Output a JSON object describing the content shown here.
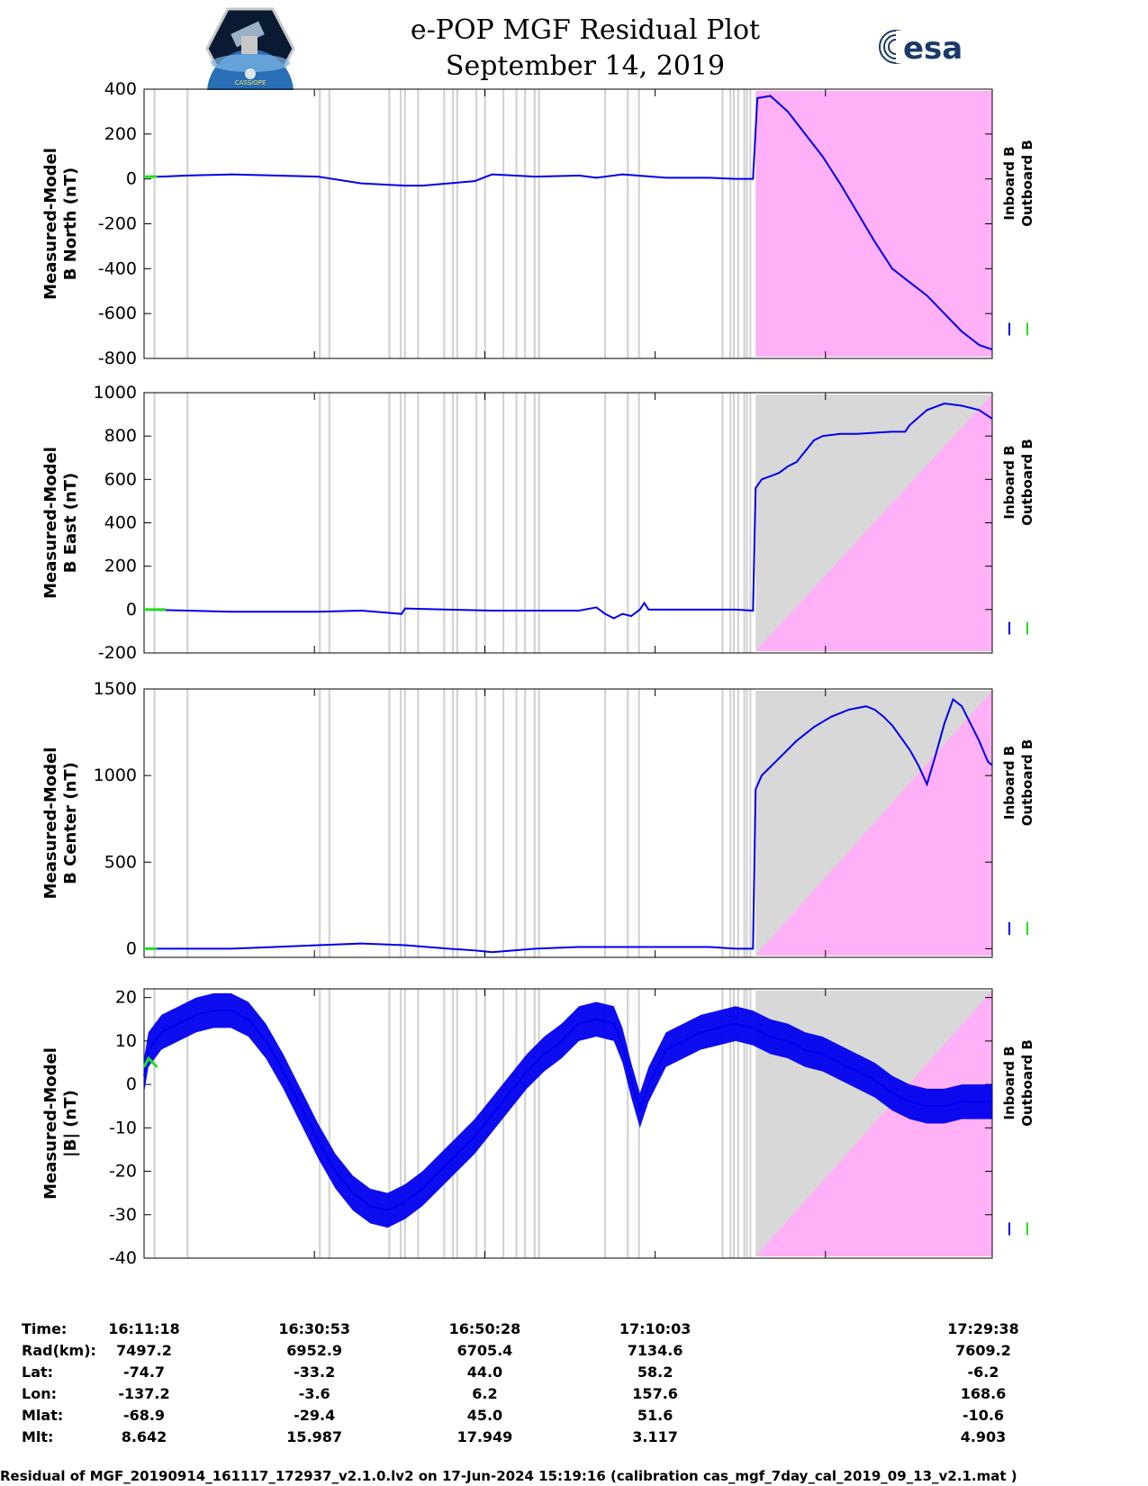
{
  "header": {
    "title": "e-POP MGF Residual Plot",
    "date": "September 14, 2019",
    "logo_left_text": "CASSIOPE",
    "logo_right_text": "esa"
  },
  "colors": {
    "inboard": "#0000ee",
    "outboard": "#22dd22",
    "gap_band": "#d3d3d3",
    "shade_gray": "#d8d8d8",
    "shade_magenta": "#ffb0f6"
  },
  "legend": {
    "inboard": "Inboard B",
    "outboard": "Outboard B"
  },
  "chart_data": [
    {
      "type": "line",
      "ylabel_lines": [
        "Measured-Model",
        "B North (nT)"
      ],
      "ylim": [
        -800,
        400
      ],
      "yticks": [
        "400",
        "200",
        "0",
        "-200",
        "-400",
        "-600",
        "-800"
      ],
      "ytick_values": [
        400,
        200,
        0,
        -200,
        -400,
        -600,
        -800
      ],
      "series": [
        {
          "name": "Inboard B",
          "x": [
            0,
            2,
            5,
            10,
            15,
            20,
            25,
            30,
            32,
            35,
            38,
            40,
            45,
            50,
            52,
            55,
            60,
            62,
            65,
            68,
            70,
            70.5,
            72,
            74,
            76,
            78,
            80,
            82,
            84,
            86,
            88,
            90,
            92,
            94,
            96,
            97.5
          ],
          "y": [
            10,
            10,
            15,
            20,
            15,
            10,
            -20,
            -30,
            -30,
            -20,
            -10,
            20,
            10,
            15,
            5,
            20,
            5,
            5,
            5,
            0,
            0,
            360,
            370,
            300,
            200,
            100,
            -20,
            -150,
            -280,
            -400,
            -460,
            -520,
            -600,
            -680,
            -740,
            -760
          ]
        },
        {
          "name": "Outboard B",
          "x": [
            0,
            1.5
          ],
          "y": [
            10,
            10
          ]
        }
      ],
      "shade": {
        "from": 70.3,
        "to": 97.5,
        "type": "magenta"
      }
    },
    {
      "type": "line",
      "ylabel_lines": [
        "Measured-Model",
        "B East (nT)"
      ],
      "ylim": [
        -200,
        1000
      ],
      "yticks": [
        "1000",
        "800",
        "600",
        "400",
        "200",
        "0",
        "-200"
      ],
      "ytick_values": [
        1000,
        800,
        600,
        400,
        200,
        0,
        -200
      ],
      "series": [
        {
          "name": "Inboard B",
          "x": [
            0,
            5,
            10,
            15,
            20,
            25,
            29.6,
            30,
            35,
            40,
            45,
            50,
            52,
            53,
            54,
            55,
            56,
            57,
            57.5,
            58,
            60,
            65,
            68,
            70,
            70.3,
            71,
            73,
            74,
            75,
            77,
            78,
            80,
            82,
            84,
            86,
            87.5,
            88,
            90,
            92,
            94,
            96,
            97.5
          ],
          "y": [
            0,
            -5,
            -10,
            -10,
            -10,
            -5,
            -20,
            5,
            0,
            -5,
            -5,
            -5,
            10,
            -20,
            -40,
            -20,
            -30,
            0,
            30,
            0,
            0,
            0,
            0,
            -5,
            560,
            600,
            630,
            660,
            680,
            780,
            800,
            810,
            810,
            815,
            820,
            820,
            850,
            920,
            950,
            940,
            920,
            880
          ]
        },
        {
          "name": "Outboard B",
          "x": [
            0,
            2.5
          ],
          "y": [
            0,
            0
          ]
        }
      ],
      "shade": {
        "from": 70.3,
        "to": 97.5,
        "type": "split"
      }
    },
    {
      "type": "line",
      "ylabel_lines": [
        "Measured-Model",
        "B Center (nT)"
      ],
      "ylim": [
        -50,
        1500
      ],
      "yticks": [
        "1500",
        "1000",
        "500",
        "0"
      ],
      "ytick_values": [
        1500,
        1000,
        500,
        0
      ],
      "series": [
        {
          "name": "Inboard B",
          "x": [
            0,
            5,
            10,
            15,
            20,
            25,
            30,
            35,
            38,
            40,
            45,
            50,
            55,
            60,
            65,
            68,
            70,
            70.3,
            71,
            73,
            75,
            77,
            79,
            81,
            83,
            84,
            85,
            86,
            87,
            88,
            89,
            90,
            91,
            92,
            93,
            94,
            95,
            96,
            97,
            97.5
          ],
          "y": [
            0,
            0,
            0,
            10,
            20,
            30,
            20,
            0,
            -10,
            -20,
            0,
            10,
            10,
            10,
            10,
            0,
            0,
            920,
            1000,
            1100,
            1200,
            1280,
            1340,
            1380,
            1400,
            1380,
            1340,
            1290,
            1220,
            1150,
            1060,
            950,
            1120,
            1300,
            1440,
            1400,
            1300,
            1200,
            1080,
            1060
          ]
        },
        {
          "name": "Outboard B",
          "x": [
            0,
            1.5
          ],
          "y": [
            0,
            0
          ]
        }
      ],
      "shade": {
        "from": 70.3,
        "to": 97.5,
        "type": "split"
      }
    },
    {
      "type": "line",
      "ylabel_lines": [
        "Measured-Model",
        "|B| (nT)"
      ],
      "ylim": [
        -40,
        22
      ],
      "yticks": [
        "20",
        "10",
        "0",
        "-10",
        "-20",
        "-30",
        "-40"
      ],
      "ytick_values": [
        20,
        10,
        0,
        -10,
        -20,
        -30,
        -40
      ],
      "series": [
        {
          "name": "Inboard B",
          "x": [
            0,
            0.5,
            2,
            4,
            6,
            8,
            10,
            12,
            14,
            16,
            18,
            20,
            22,
            24,
            26,
            28,
            30,
            32,
            34,
            36,
            38,
            40,
            42,
            44,
            46,
            48,
            50,
            52,
            54,
            55,
            56,
            57,
            58,
            60,
            62,
            64,
            66,
            68,
            70,
            72,
            74,
            76,
            78,
            80,
            82,
            84,
            86,
            88,
            90,
            92,
            94,
            96,
            97.5
          ],
          "y": [
            2,
            8,
            12,
            14,
            16,
            17,
            17,
            15,
            10,
            3,
            -5,
            -13,
            -20,
            -25,
            -28,
            -29,
            -27,
            -24,
            -20,
            -16,
            -12,
            -7,
            -2,
            3,
            7,
            10,
            14,
            15,
            14,
            9,
            1,
            -6,
            0,
            8,
            10,
            12,
            13,
            14,
            13,
            11,
            10,
            8,
            7,
            5,
            3,
            1,
            -2,
            -4,
            -5,
            -5,
            -4,
            -4,
            -4
          ],
          "band_halfwidth": 4
        },
        {
          "name": "Outboard B",
          "x": [
            0,
            0.5,
            1,
            1.5
          ],
          "y": [
            4,
            6,
            5,
            4
          ]
        }
      ],
      "shade": {
        "from": 70.3,
        "to": 97.5,
        "type": "split"
      }
    }
  ],
  "x_axis": {
    "minutes_max": 97.5,
    "tick_minutes": [
      0,
      19.58,
      39.17,
      58.75,
      78.33
    ]
  },
  "gap_minutes": [
    1.2,
    5.0,
    20.2,
    21.3,
    28.2,
    29.5,
    30.0,
    31.5,
    34.5,
    35.5,
    36.0,
    38.2,
    39.2,
    41.3,
    42.8,
    43.8,
    44.9,
    45.4,
    53.0,
    55.6,
    56.9,
    66.5,
    67.4,
    67.8,
    68.3,
    69.0,
    69.3,
    69.7
  ],
  "info_table": {
    "row_labels": [
      "Time:",
      "Rad(km):",
      "Lat:",
      "Lon:",
      "Mlat:",
      "Mlt:"
    ],
    "columns": [
      [
        "16:11:18",
        "7497.2",
        "-74.7",
        "-137.2",
        "-68.9",
        "8.642"
      ],
      [
        "16:30:53",
        "6952.9",
        "-33.2",
        "-3.6",
        "-29.4",
        "15.987"
      ],
      [
        "16:50:28",
        "6705.4",
        "44.0",
        "6.2",
        "45.0",
        "17.949"
      ],
      [
        "17:10:03",
        "7134.6",
        "58.2",
        "157.6",
        "51.6",
        "3.117"
      ],
      [
        "17:29:38",
        "7609.2",
        "-6.2",
        "168.6",
        "-10.6",
        "4.903"
      ]
    ]
  },
  "footer": "Residual of MGF_20190914_161117_172937_v2.1.0.lv2 on 17-Jun-2024 15:19:16 (calibration cas_mgf_7day_cal_2019_09_13_v2.1.mat )"
}
